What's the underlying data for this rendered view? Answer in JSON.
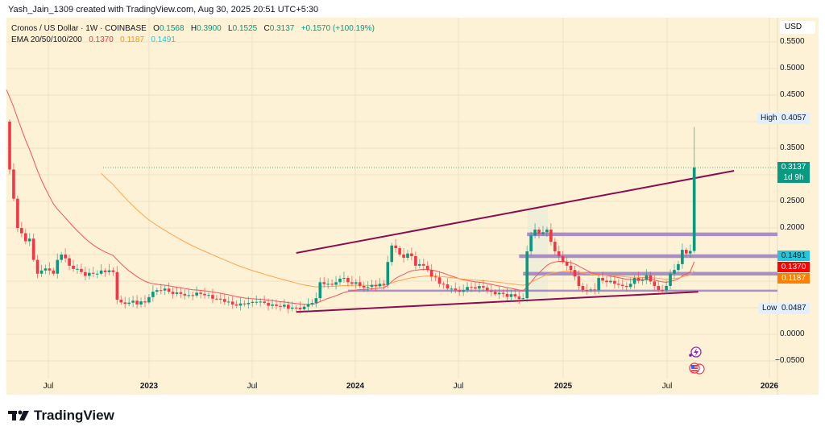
{
  "attribution": "Yash_Jain_1309 created with TradingView.com, Aug 30, 2025 20:51 UTC+5:30",
  "legend": {
    "symbol": "Cronos / US Dollar · 1W · COINBASE",
    "o_label": "O",
    "o": "0.1568",
    "h_label": "H",
    "h": "0.3900",
    "l_label": "L",
    "l": "0.1525",
    "c_label": "C",
    "c": "0.3137",
    "change": "+0.1570 (+100.19%)",
    "ema_label": "EMA 20/50/100/200",
    "ema20": "0.1370",
    "ema50": "0.1187",
    "ema100": "0.1491"
  },
  "axis": {
    "currency": "USD",
    "price_ticks": [
      "0.5500",
      "0.5000",
      "0.4500",
      "0.3500",
      "0.2500",
      "0.2000",
      "0.0000",
      "−0.0500"
    ],
    "time_ticks": [
      "Jul",
      "2023",
      "Jul",
      "2024",
      "Jul",
      "2025",
      "Jul",
      "2026"
    ]
  },
  "tags": {
    "high_label": "High",
    "high": "0.4057",
    "low_label": "Low",
    "low": "0.0487",
    "last": "0.3137",
    "countdown": "1d 9h",
    "ema_c": "0.1491",
    "ema_r": "0.1370",
    "ema_o": "0.1187"
  },
  "brand": "TradingView",
  "colors": {
    "up": "#089981",
    "down": "#f23645",
    "ema20": "#f7525f",
    "ema50": "#ffa54c",
    "trend": "#880e4f",
    "zone": "#9c7ec2"
  },
  "chart_data": {
    "type": "candlestick",
    "interval": "1W",
    "ylim": [
      -0.06,
      0.56
    ],
    "first_open": 0.4,
    "waypoints": [
      [
        0,
        0.31
      ],
      [
        1,
        0.255
      ],
      [
        2,
        0.2
      ],
      [
        3,
        0.19
      ],
      [
        4,
        0.175
      ],
      [
        5,
        0.18
      ],
      [
        6,
        0.14
      ],
      [
        7,
        0.114
      ],
      [
        8,
        0.12
      ],
      [
        10,
        0.12
      ],
      [
        11,
        0.114
      ],
      [
        12,
        0.14
      ],
      [
        13,
        0.15
      ],
      [
        14,
        0.143
      ],
      [
        15,
        0.129
      ],
      [
        17,
        0.123
      ],
      [
        18,
        0.117
      ],
      [
        19,
        0.11
      ],
      [
        21,
        0.114
      ],
      [
        22,
        0.114
      ],
      [
        23,
        0.12
      ],
      [
        24,
        0.117
      ],
      [
        26,
        0.117
      ],
      [
        27,
        0.065
      ],
      [
        28,
        0.06
      ],
      [
        34,
        0.06
      ],
      [
        35,
        0.07
      ],
      [
        37,
        0.083
      ],
      [
        39,
        0.086
      ],
      [
        40,
        0.08
      ],
      [
        41,
        0.076
      ],
      [
        43,
        0.076
      ],
      [
        44,
        0.073
      ],
      [
        46,
        0.073
      ],
      [
        48,
        0.076
      ],
      [
        50,
        0.074
      ],
      [
        52,
        0.067
      ],
      [
        54,
        0.061
      ],
      [
        56,
        0.056
      ],
      [
        58,
        0.058
      ],
      [
        61,
        0.061
      ],
      [
        62,
        0.061
      ],
      [
        64,
        0.059
      ],
      [
        66,
        0.056
      ],
      [
        68,
        0.052
      ],
      [
        72,
        0.05
      ],
      [
        74,
        0.052
      ],
      [
        75,
        0.056
      ],
      [
        76,
        0.059
      ],
      [
        77,
        0.068
      ],
      [
        78,
        0.098
      ],
      [
        80,
        0.095
      ],
      [
        82,
        0.098
      ],
      [
        84,
        0.106
      ],
      [
        85,
        0.098
      ],
      [
        86,
        0.095
      ],
      [
        87,
        0.098
      ],
      [
        88,
        0.091
      ],
      [
        89,
        0.088
      ],
      [
        91,
        0.093
      ],
      [
        93,
        0.095
      ],
      [
        94,
        0.093
      ],
      [
        95,
        0.136
      ],
      [
        96,
        0.167
      ],
      [
        97,
        0.162
      ],
      [
        99,
        0.144
      ],
      [
        100,
        0.152
      ],
      [
        101,
        0.147
      ],
      [
        102,
        0.129
      ],
      [
        103,
        0.132
      ],
      [
        104,
        0.129
      ],
      [
        105,
        0.121
      ],
      [
        108,
        0.095
      ],
      [
        109,
        0.094
      ],
      [
        110,
        0.086
      ],
      [
        111,
        0.086
      ],
      [
        113,
        0.08
      ],
      [
        114,
        0.083
      ],
      [
        115,
        0.089
      ],
      [
        117,
        0.086
      ],
      [
        119,
        0.088
      ],
      [
        121,
        0.08
      ],
      [
        124,
        0.076
      ],
      [
        127,
        0.071
      ],
      [
        129,
        0.068
      ],
      [
        130,
        0.156
      ],
      [
        131,
        0.186
      ],
      [
        132,
        0.197
      ],
      [
        133,
        0.189
      ],
      [
        134,
        0.192
      ],
      [
        135,
        0.197
      ],
      [
        136,
        0.174
      ],
      [
        137,
        0.156
      ],
      [
        138,
        0.147
      ],
      [
        139,
        0.136
      ],
      [
        140,
        0.129
      ],
      [
        141,
        0.121
      ],
      [
        142,
        0.109
      ],
      [
        143,
        0.091
      ],
      [
        145,
        0.083
      ],
      [
        147,
        0.083
      ],
      [
        148,
        0.106
      ],
      [
        150,
        0.098
      ],
      [
        152,
        0.095
      ],
      [
        154,
        0.091
      ],
      [
        156,
        0.095
      ],
      [
        157,
        0.106
      ],
      [
        159,
        0.102
      ],
      [
        160,
        0.111
      ],
      [
        162,
        0.091
      ],
      [
        164,
        0.083
      ],
      [
        165,
        0.091
      ],
      [
        166,
        0.114
      ],
      [
        167,
        0.121
      ],
      [
        168,
        0.132
      ],
      [
        169,
        0.159
      ],
      [
        170,
        0.152
      ],
      [
        171,
        0.1568
      ],
      [
        172,
        0.3137
      ]
    ],
    "last_candle": {
      "open": 0.1568,
      "high": 0.39,
      "low": 0.1525,
      "close": 0.3137
    },
    "ema20_seed": 0.46,
    "ema50_seed": {
      "week": 23,
      "value": 0.31
    },
    "trendlines": [
      {
        "name": "upper",
        "from": [
          72,
          0.153
        ],
        "to": [
          182,
          0.3076
        ]
      },
      {
        "name": "lower",
        "from": [
          72,
          0.042
        ],
        "to": [
          173,
          0.08
        ]
      }
    ],
    "zones": [
      {
        "price": 0.188,
        "from_week": 130
      },
      {
        "price": 0.147,
        "from_week": 128
      },
      {
        "price": 0.114,
        "from_week": 129
      },
      {
        "price": 0.082,
        "from_week": 85
      }
    ]
  }
}
